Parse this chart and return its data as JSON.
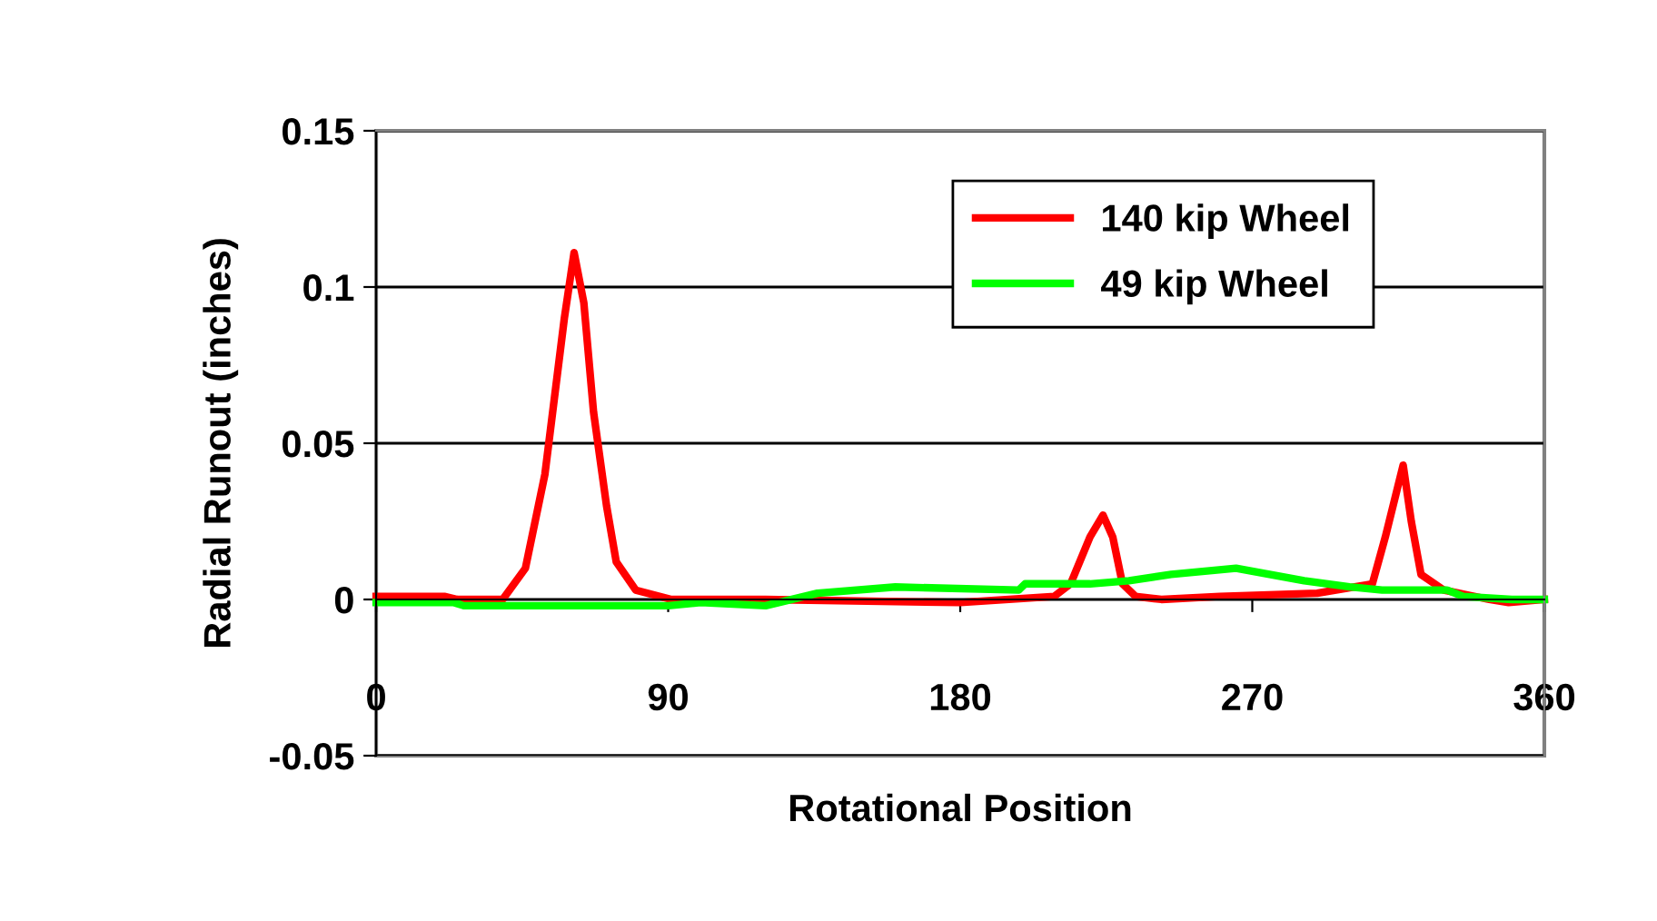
{
  "chart_data": {
    "type": "line",
    "xlabel": "Rotational Position",
    "ylabel": "Radial Runout (inches)",
    "xlim": [
      0,
      360
    ],
    "xticks": [
      0,
      90,
      180,
      270,
      360
    ],
    "ylim": [
      -0.05,
      0.15
    ],
    "yticks": [
      -0.05,
      0,
      0.05,
      0.1,
      0.15
    ],
    "grid": "y",
    "legend": "top right",
    "marker": "none",
    "line_style": "solid",
    "series": [
      {
        "name": "140 kip Wheel",
        "color": "#ff0000",
        "x": [
          0,
          21,
          25,
          39,
          46,
          52,
          58,
          61,
          64,
          67,
          71,
          74,
          80,
          91,
          120,
          180,
          209,
          214,
          220,
          224,
          227,
          230,
          234,
          242,
          260,
          290,
          307,
          311,
          316.5,
          319,
          322,
          329,
          343,
          349,
          360
        ],
        "values": [
          0.001,
          0.001,
          0,
          0,
          0.01,
          0.04,
          0.09,
          0.111,
          0.095,
          0.06,
          0.03,
          0.012,
          0.003,
          0,
          0,
          -0.001,
          0.001,
          0.005,
          0.02,
          0.027,
          0.02,
          0.005,
          0.001,
          0,
          0.001,
          0.002,
          0.005,
          0.02,
          0.043,
          0.025,
          0.008,
          0.003,
          0,
          -0.001,
          0
        ]
      },
      {
        "name": "49 kip Wheel",
        "color": "#00ff00",
        "x": [
          0,
          24,
          27,
          40,
          90,
          100,
          120,
          136,
          160,
          198,
          200,
          220,
          232,
          245,
          265,
          286,
          300,
          310,
          330,
          335,
          350,
          360
        ],
        "values": [
          -0.001,
          -0.001,
          -0.002,
          -0.002,
          -0.002,
          -0.001,
          -0.002,
          0.002,
          0.004,
          0.003,
          0.005,
          0.005,
          0.006,
          0.008,
          0.01,
          0.006,
          0.004,
          0.003,
          0.003,
          0.001,
          0,
          0
        ]
      }
    ]
  }
}
